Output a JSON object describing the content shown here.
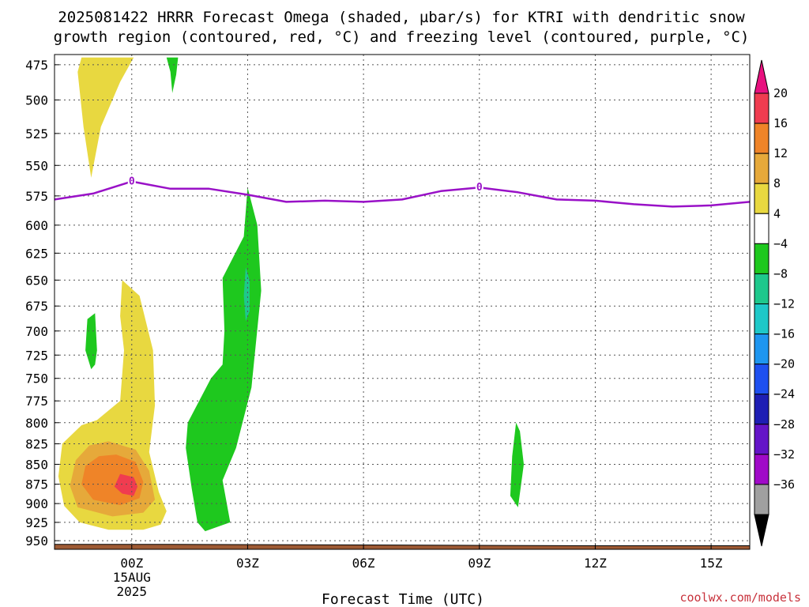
{
  "title": {
    "line1": "2025081422 HRRR Forecast Omega (shaded, µbar/s) for KTRI with dendritic snow",
    "line2": "growth region (contoured, red, °C) and freezing level (contoured, purple, °C)"
  },
  "credit": "coolwx.com/models",
  "chart_data": {
    "type": "heatmap",
    "title": "2025081422 HRRR Forecast Omega (shaded, µbar/s) for KTRI with dendritic snow growth region (contoured, red, °C) and freezing level (contoured, purple, °C)",
    "xlabel": "Forecast Time (UTC)",
    "ylabel": "",
    "x_unit": "forecast hour relative to 2025-08-15 00Z",
    "xlim": [
      -2,
      16
    ],
    "ylim": [
      962,
      468
    ],
    "x_ticks": [
      {
        "x": 0,
        "label": "00Z",
        "sub1": "15AUG",
        "sub2": "2025"
      },
      {
        "x": 3,
        "label": "03Z"
      },
      {
        "x": 6,
        "label": "06Z"
      },
      {
        "x": 9,
        "label": "09Z"
      },
      {
        "x": 12,
        "label": "12Z"
      },
      {
        "x": 15,
        "label": "15Z"
      }
    ],
    "y_ticks": [
      475,
      500,
      525,
      550,
      575,
      600,
      625,
      650,
      675,
      700,
      725,
      750,
      775,
      800,
      825,
      850,
      875,
      900,
      925,
      950
    ],
    "grid": true,
    "colorbar": {
      "levels": [
        "20",
        "16",
        "12",
        "8",
        "4",
        "−4",
        "−8",
        "−12",
        "−16",
        "−20",
        "−24",
        "−28",
        "−32",
        "−36"
      ],
      "top_color": "#e8117f",
      "bottom_color": "#000000",
      "colors": [
        "#f03c50",
        "#ef8428",
        "#e6a93a",
        "#e8d840",
        "#ffffff",
        "#1ec81e",
        "#1ec88c",
        "#1ec8c8",
        "#1e96f0",
        "#1e50f0",
        "#1e1eb4",
        "#6414c8",
        "#a00ac8",
        "#a0a0a0"
      ]
    },
    "omega_regions": [
      {
        "value": 4,
        "color": "#e8d840",
        "points": [
          [
            -1.3,
            470
          ],
          [
            0.05,
            470
          ],
          [
            -0.3,
            487
          ],
          [
            -0.8,
            520
          ],
          [
            -1.05,
            560
          ],
          [
            -1.25,
            520
          ],
          [
            -1.4,
            480
          ]
        ]
      },
      {
        "value": 4,
        "color": "#e8d840",
        "points": [
          [
            -0.25,
            650
          ],
          [
            0.2,
            665
          ],
          [
            0.55,
            720
          ],
          [
            0.6,
            780
          ],
          [
            0.45,
            835
          ],
          [
            0.7,
            885
          ],
          [
            0.9,
            910
          ],
          [
            0.75,
            928
          ],
          [
            0.3,
            935
          ],
          [
            -0.6,
            935
          ],
          [
            -1.35,
            925
          ],
          [
            -1.75,
            903
          ],
          [
            -1.9,
            865
          ],
          [
            -1.8,
            825
          ],
          [
            -1.3,
            803
          ],
          [
            -0.9,
            797
          ],
          [
            -0.3,
            775
          ],
          [
            -0.2,
            720
          ],
          [
            -0.3,
            685
          ]
        ]
      },
      {
        "value": 8,
        "color": "#e6a93a",
        "points": [
          [
            -0.6,
            822
          ],
          [
            0.1,
            832
          ],
          [
            0.45,
            858
          ],
          [
            0.6,
            895
          ],
          [
            0.3,
            912
          ],
          [
            -0.5,
            917
          ],
          [
            -1.4,
            905
          ],
          [
            -1.6,
            877
          ],
          [
            -1.45,
            845
          ],
          [
            -1.1,
            827
          ]
        ]
      },
      {
        "value": 12,
        "color": "#ef8428",
        "points": [
          [
            -0.4,
            838
          ],
          [
            0.1,
            847
          ],
          [
            0.3,
            872
          ],
          [
            0.2,
            893
          ],
          [
            -0.3,
            902
          ],
          [
            -1.0,
            895
          ],
          [
            -1.3,
            875
          ],
          [
            -1.2,
            852
          ],
          [
            -0.85,
            840
          ]
        ]
      },
      {
        "value": 16,
        "color": "#f03c50",
        "points": [
          [
            -0.3,
            862
          ],
          [
            0.05,
            866
          ],
          [
            0.15,
            878
          ],
          [
            0.05,
            890
          ],
          [
            -0.25,
            887
          ],
          [
            -0.45,
            878
          ]
        ]
      },
      {
        "value": -4,
        "color": "#1ec81e",
        "points": [
          [
            0.9,
            470
          ],
          [
            1.2,
            470
          ],
          [
            1.15,
            482
          ],
          [
            1.05,
            495
          ],
          [
            1.0,
            480
          ]
        ]
      },
      {
        "value": -4,
        "color": "#1ec81e",
        "points": [
          [
            -1.15,
            688
          ],
          [
            -0.95,
            682
          ],
          [
            -0.9,
            720
          ],
          [
            -0.95,
            735
          ],
          [
            -1.05,
            740
          ],
          [
            -1.2,
            720
          ]
        ]
      },
      {
        "value": -4,
        "color": "#1ec81e",
        "points": [
          [
            3.0,
            568
          ],
          [
            2.9,
            610
          ],
          [
            2.35,
            648
          ],
          [
            2.4,
            700
          ],
          [
            2.35,
            735
          ],
          [
            2.05,
            750
          ],
          [
            1.45,
            800
          ],
          [
            1.4,
            830
          ],
          [
            1.55,
            880
          ],
          [
            1.7,
            925
          ],
          [
            1.9,
            937
          ],
          [
            2.55,
            925
          ],
          [
            2.35,
            870
          ],
          [
            2.7,
            830
          ],
          [
            3.1,
            760
          ],
          [
            3.35,
            660
          ],
          [
            3.25,
            600
          ]
        ]
      },
      {
        "value": -8,
        "color": "#1ec88c",
        "points": [
          [
            2.95,
            638
          ],
          [
            3.05,
            650
          ],
          [
            3.05,
            680
          ],
          [
            2.95,
            690
          ],
          [
            2.9,
            665
          ]
        ]
      },
      {
        "value": -4,
        "color": "#1ec81e",
        "points": [
          [
            9.95,
            800
          ],
          [
            10.05,
            810
          ],
          [
            10.15,
            850
          ],
          [
            10.0,
            905
          ],
          [
            9.8,
            890
          ],
          [
            9.85,
            840
          ]
        ]
      }
    ],
    "freezing_level": {
      "value": 0,
      "color": "#9911c7",
      "label": "0",
      "label_at": [
        0,
        9
      ],
      "x": [
        -2,
        -1,
        0,
        1,
        2,
        3,
        4,
        5,
        6,
        7,
        8,
        9,
        10,
        11,
        12,
        13,
        14,
        15,
        16
      ],
      "y": [
        578,
        573,
        563,
        569,
        569,
        574,
        580,
        579,
        580,
        578,
        571,
        568,
        572,
        578,
        579,
        582,
        584,
        583,
        580
      ]
    },
    "terrain": {
      "color": "#9e5a34",
      "edge_color": "#000000",
      "x": [
        -2,
        1,
        12,
        16
      ],
      "top": [
        955,
        955,
        957,
        957
      ]
    }
  }
}
